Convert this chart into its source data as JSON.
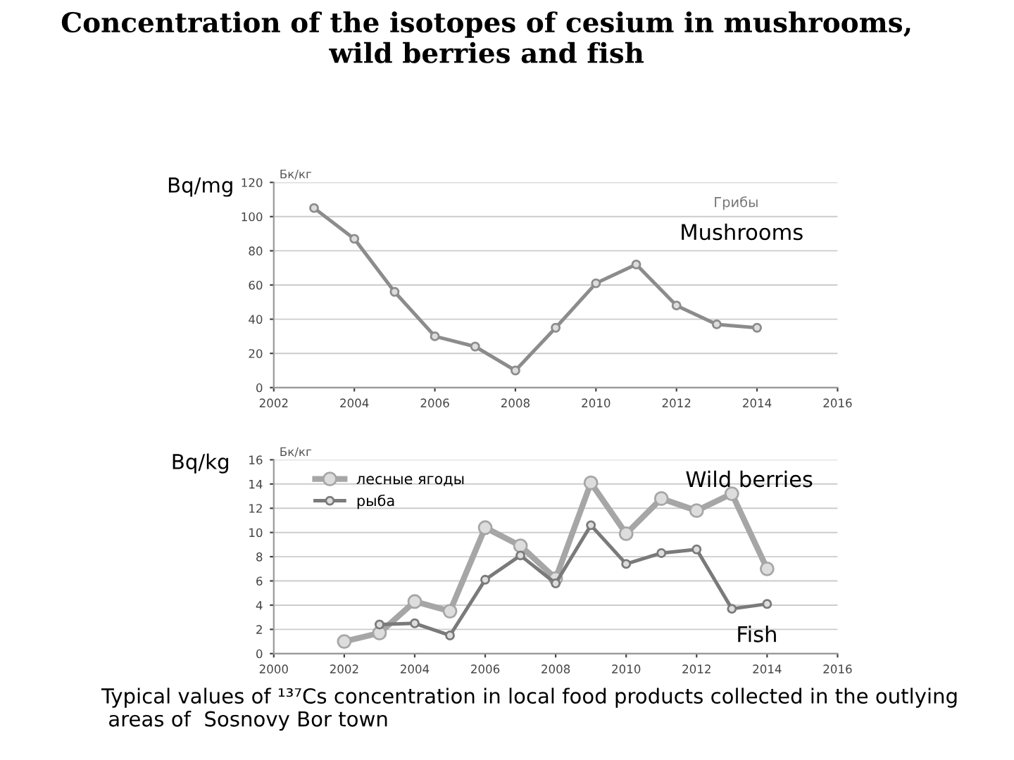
{
  "chart_data": [
    {
      "type": "line",
      "title": "Concentration of the isotopes of cesium in mushrooms,\nwild berries and fish",
      "ylabel": "Bq/mg",
      "x": [
        2003,
        2004,
        2005,
        2006,
        2007,
        2008,
        2009,
        2010,
        2011,
        2012,
        2013,
        2014
      ],
      "series": [
        {
          "color": "#8c8c8c",
          "values": [
            105,
            87,
            56,
            30,
            24,
            10,
            35,
            61,
            72,
            48,
            37,
            35
          ]
        }
      ],
      "xlim": [
        2002,
        2016
      ],
      "xticks": [
        2002,
        2004,
        2006,
        2008,
        2010,
        2012,
        2014,
        2016
      ],
      "ylim": [
        0,
        120
      ],
      "yticks": [
        0,
        20,
        40,
        60,
        80,
        100,
        120
      ],
      "grid": "y",
      "marker": "circle",
      "line_style": "solid",
      "legend": false,
      "annotations": [
        "Бк/кг",
        "Грибы",
        "Mushrooms"
      ]
    },
    {
      "type": "line",
      "ylabel": "Bq/kg",
      "series": [
        {
          "name": "лесные ягоды",
          "color": "#a6a6a6",
          "x": [
            2002,
            2003,
            2004,
            2005,
            2006,
            2007,
            2008,
            2009,
            2010,
            2011,
            2012,
            2013,
            2014
          ],
          "values": [
            1.0,
            1.7,
            4.3,
            3.5,
            10.4,
            8.9,
            6.2,
            14.1,
            9.9,
            12.8,
            11.8,
            13.2,
            7.0
          ]
        },
        {
          "name": "рыба",
          "color": "#7a7a7a",
          "x": [
            2003,
            2004,
            2005,
            2006,
            2007,
            2008,
            2009,
            2010,
            2011,
            2012,
            2013,
            2014
          ],
          "values": [
            2.4,
            2.5,
            1.5,
            6.1,
            8.1,
            5.8,
            10.6,
            7.4,
            8.3,
            8.6,
            3.7,
            4.1
          ]
        }
      ],
      "xlim": [
        2000,
        2016
      ],
      "xticks": [
        2000,
        2002,
        2004,
        2006,
        2008,
        2010,
        2012,
        2014,
        2016
      ],
      "ylim": [
        0,
        16
      ],
      "yticks": [
        0,
        2,
        4,
        6,
        8,
        10,
        12,
        14,
        16
      ],
      "grid": "y",
      "marker": "circle",
      "line_style": "solid",
      "legend": "top left",
      "annotations": [
        "Бк/кг",
        "Wild berries",
        "Fish",
        "Typical values of ¹³⁷Cs concentration in local food products collected in the outlying\n areas of  Sosnovy Bor town"
      ]
    }
  ]
}
